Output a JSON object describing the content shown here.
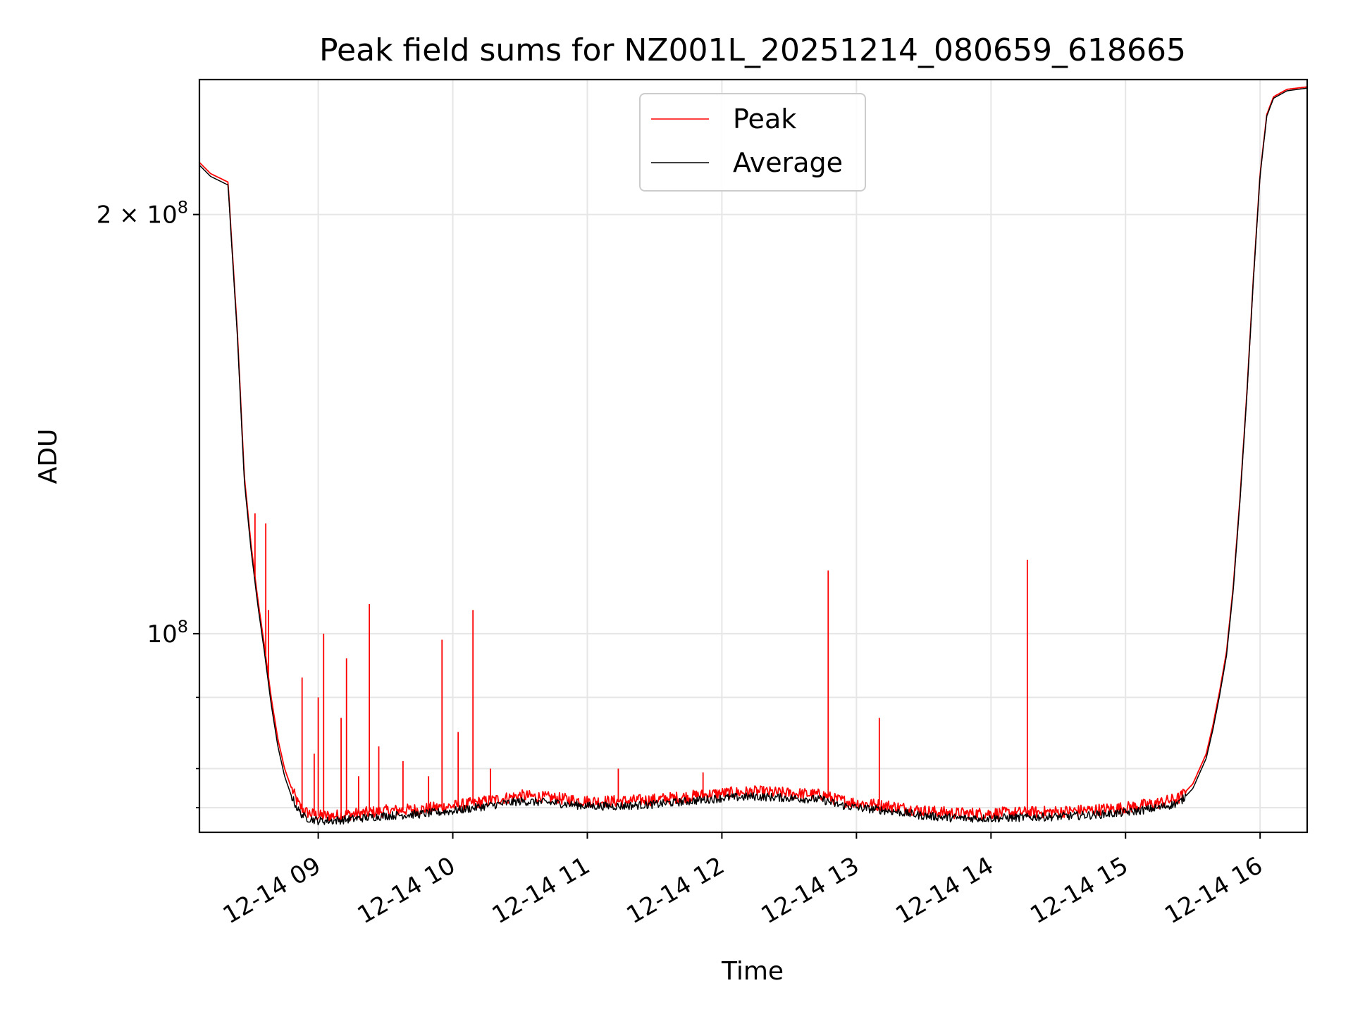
{
  "chart_data": {
    "type": "line",
    "title": "Peak field sums for NZ001L_20251214_080659_618665",
    "xlabel": "Time",
    "ylabel": "ADU",
    "yscale": "log",
    "grid": true,
    "legend_position": "upper-center",
    "xlim_hours": [
      8.117,
      16.35
    ],
    "ylim": [
      72000000,
      250000000
    ],
    "x_ticks": [
      {
        "hour": 9,
        "label": "12-14 09"
      },
      {
        "hour": 10,
        "label": "12-14 10"
      },
      {
        "hour": 11,
        "label": "12-14 11"
      },
      {
        "hour": 12,
        "label": "12-14 12"
      },
      {
        "hour": 13,
        "label": "12-14 13"
      },
      {
        "hour": 14,
        "label": "12-14 14"
      },
      {
        "hour": 15,
        "label": "12-14 15"
      },
      {
        "hour": 16,
        "label": "12-14 16"
      }
    ],
    "y_ticks_major": [
      {
        "value": 100000000,
        "label_base": "10",
        "label_exp": "8",
        "label_prefix": ""
      },
      {
        "value": 200000000,
        "label_base": "10",
        "label_exp": "8",
        "label_prefix": "2 × "
      }
    ],
    "y_ticks_minor": [
      75000000,
      80000000,
      90000000
    ],
    "series": [
      {
        "name": "Peak",
        "color": "#ff0000",
        "x": [
          8.117,
          8.2,
          8.33,
          8.35,
          8.4,
          8.45,
          8.5,
          8.55,
          8.6,
          8.65,
          8.7,
          8.75,
          8.8,
          8.85,
          8.9,
          9.0,
          9.1,
          9.25,
          9.5,
          9.75,
          10.0,
          10.25,
          10.5,
          10.75,
          11.0,
          11.25,
          11.5,
          11.75,
          12.0,
          12.25,
          12.5,
          12.75,
          12.85,
          13.0,
          13.25,
          13.5,
          13.75,
          14.0,
          14.25,
          14.5,
          14.75,
          15.0,
          15.25,
          15.4,
          15.5,
          15.6,
          15.65,
          15.7,
          15.75,
          15.8,
          15.85,
          15.9,
          15.95,
          16.0,
          16.05,
          16.1,
          16.2,
          16.35
        ],
        "y": [
          218000000,
          214000000,
          211000000,
          196000000,
          164000000,
          130000000,
          116000000,
          106000000,
          98000000,
          90000000,
          84000000,
          80000000,
          77500000,
          75500000,
          74500000,
          74000000,
          74000000,
          74200000,
          74600000,
          74800000,
          75200000,
          75800000,
          76500000,
          76200000,
          75800000,
          75800000,
          76000000,
          76400000,
          76800000,
          77000000,
          76800000,
          76600000,
          76000000,
          75600000,
          75200000,
          74600000,
          74300000,
          74300000,
          74400000,
          74500000,
          74700000,
          75000000,
          75600000,
          76200000,
          78000000,
          82000000,
          86000000,
          91000000,
          97000000,
          108000000,
          125000000,
          148000000,
          180000000,
          214000000,
          236000000,
          243000000,
          246000000,
          247000000
        ]
      },
      {
        "name": "Average",
        "color": "#000000",
        "x": [
          8.117,
          8.2,
          8.33,
          8.35,
          8.4,
          8.45,
          8.5,
          8.55,
          8.6,
          8.65,
          8.7,
          8.75,
          8.8,
          8.85,
          8.9,
          9.0,
          9.1,
          9.25,
          9.5,
          9.75,
          10.0,
          10.25,
          10.5,
          10.75,
          11.0,
          11.25,
          11.5,
          11.75,
          12.0,
          12.25,
          12.5,
          12.75,
          12.85,
          13.0,
          13.25,
          13.5,
          13.75,
          14.0,
          14.25,
          14.5,
          14.75,
          15.0,
          15.25,
          15.4,
          15.5,
          15.6,
          15.65,
          15.7,
          15.75,
          15.8,
          15.85,
          15.9,
          15.95,
          16.0,
          16.05,
          16.1,
          16.2,
          16.35
        ],
        "y": [
          217000000,
          213000000,
          210000000,
          195000000,
          163000000,
          129000000,
          115000000,
          105000000,
          97000000,
          89000000,
          83000000,
          79000000,
          76500000,
          74700000,
          73800000,
          73400000,
          73400000,
          73600000,
          74000000,
          74200000,
          74600000,
          75200000,
          75800000,
          75600000,
          75200000,
          75200000,
          75400000,
          75800000,
          76200000,
          76400000,
          76200000,
          76000000,
          75400000,
          75000000,
          74600000,
          74000000,
          73700000,
          73700000,
          73800000,
          73900000,
          74100000,
          74400000,
          75000000,
          75600000,
          77400000,
          81400000,
          85400000,
          90400000,
          96400000,
          107400000,
          124400000,
          147400000,
          179400000,
          213400000,
          235400000,
          242400000,
          245400000,
          246500000
        ]
      }
    ],
    "spikes": [
      {
        "hour": 8.53,
        "value": 122000000
      },
      {
        "hour": 8.61,
        "value": 120000000
      },
      {
        "hour": 8.63,
        "value": 104000000
      },
      {
        "hour": 8.88,
        "value": 93000000
      },
      {
        "hour": 8.97,
        "value": 82000000
      },
      {
        "hour": 9.0,
        "value": 90000000
      },
      {
        "hour": 9.04,
        "value": 100000000
      },
      {
        "hour": 9.17,
        "value": 87000000
      },
      {
        "hour": 9.21,
        "value": 96000000
      },
      {
        "hour": 9.3,
        "value": 79000000
      },
      {
        "hour": 9.38,
        "value": 105000000
      },
      {
        "hour": 9.45,
        "value": 83000000
      },
      {
        "hour": 9.63,
        "value": 81000000
      },
      {
        "hour": 9.82,
        "value": 79000000
      },
      {
        "hour": 9.92,
        "value": 99000000
      },
      {
        "hour": 10.04,
        "value": 85000000
      },
      {
        "hour": 10.15,
        "value": 104000000
      },
      {
        "hour": 10.28,
        "value": 80000000
      },
      {
        "hour": 11.23,
        "value": 80000000
      },
      {
        "hour": 11.86,
        "value": 79500000
      },
      {
        "hour": 12.79,
        "value": 111000000
      },
      {
        "hour": 13.17,
        "value": 87000000
      },
      {
        "hour": 14.27,
        "value": 113000000
      }
    ]
  },
  "legend": {
    "entries": [
      {
        "label": "Peak",
        "color": "#ff0000"
      },
      {
        "label": "Average",
        "color": "#000000"
      }
    ]
  }
}
